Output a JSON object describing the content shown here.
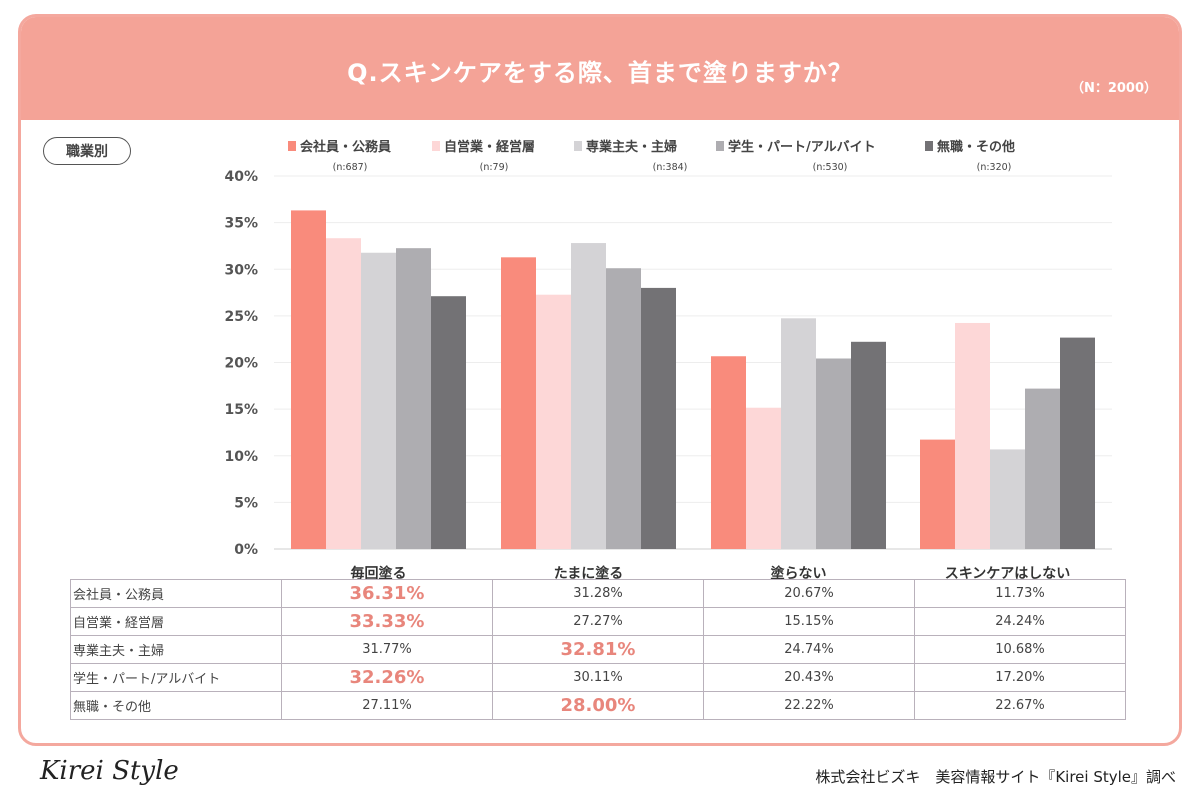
{
  "header": {
    "title": "Q.スキンケアをする際、首まで塗りますか？",
    "sample": "（N：2000）"
  },
  "badge": "職業別",
  "footer": {
    "logo": "Kirei Style",
    "credit": "株式会社ビズキ　美容情報サイト『Kirei Style』調べ"
  },
  "colors": [
    "#f98b7c",
    "#fdd7d7",
    "#d4d3d6",
    "#aeadb1",
    "#737275"
  ],
  "highlight_color": "#e8867c",
  "chart_data": {
    "type": "bar",
    "title": "",
    "xlabel": "",
    "ylabel": "",
    "ylim": [
      0,
      40
    ],
    "yticks": [
      "0%",
      "5%",
      "10%",
      "15%",
      "20%",
      "25%",
      "30%",
      "35%",
      "40%"
    ],
    "grid": true,
    "legend": "top",
    "categories": [
      "毎回塗る",
      "たまに塗る",
      "塗らない",
      "スキンケアはしない"
    ],
    "series": [
      {
        "name": "会社員・公務員",
        "n": "(n:687)",
        "values": [
          36.31,
          31.28,
          20.67,
          11.73
        ]
      },
      {
        "name": "自営業・経営層",
        "n": "(n:79)",
        "values": [
          33.33,
          27.27,
          15.15,
          24.24
        ]
      },
      {
        "name": "専業主夫・主婦",
        "n": "(n:384)",
        "values": [
          31.77,
          32.81,
          24.74,
          10.68
        ]
      },
      {
        "name": "学生・パート/アルバイト",
        "n": "(n:530)",
        "values": [
          32.26,
          30.11,
          20.43,
          17.2
        ]
      },
      {
        "name": "無職・その他",
        "n": "(n:320)",
        "values": [
          27.11,
          28.0,
          22.22,
          22.67
        ]
      }
    ]
  },
  "table": {
    "rows": [
      {
        "label": "会社員・公務員",
        "cells": [
          "36.31%",
          "31.28%",
          "20.67%",
          "11.73%"
        ],
        "highlight": [
          true,
          false,
          false,
          false
        ]
      },
      {
        "label": "自営業・経営層",
        "cells": [
          "33.33%",
          "27.27%",
          "15.15%",
          "24.24%"
        ],
        "highlight": [
          true,
          false,
          false,
          false
        ]
      },
      {
        "label": "専業主夫・主婦",
        "cells": [
          "31.77%",
          "32.81%",
          "24.74%",
          "10.68%"
        ],
        "highlight": [
          false,
          true,
          false,
          false
        ]
      },
      {
        "label": "学生・パート/アルバイト",
        "cells": [
          "32.26%",
          "30.11%",
          "20.43%",
          "17.20%"
        ],
        "highlight": [
          true,
          false,
          false,
          false
        ]
      },
      {
        "label": "無職・その他",
        "cells": [
          "27.11%",
          "28.00%",
          "22.22%",
          "22.67%"
        ],
        "highlight": [
          false,
          true,
          false,
          false
        ]
      }
    ]
  }
}
